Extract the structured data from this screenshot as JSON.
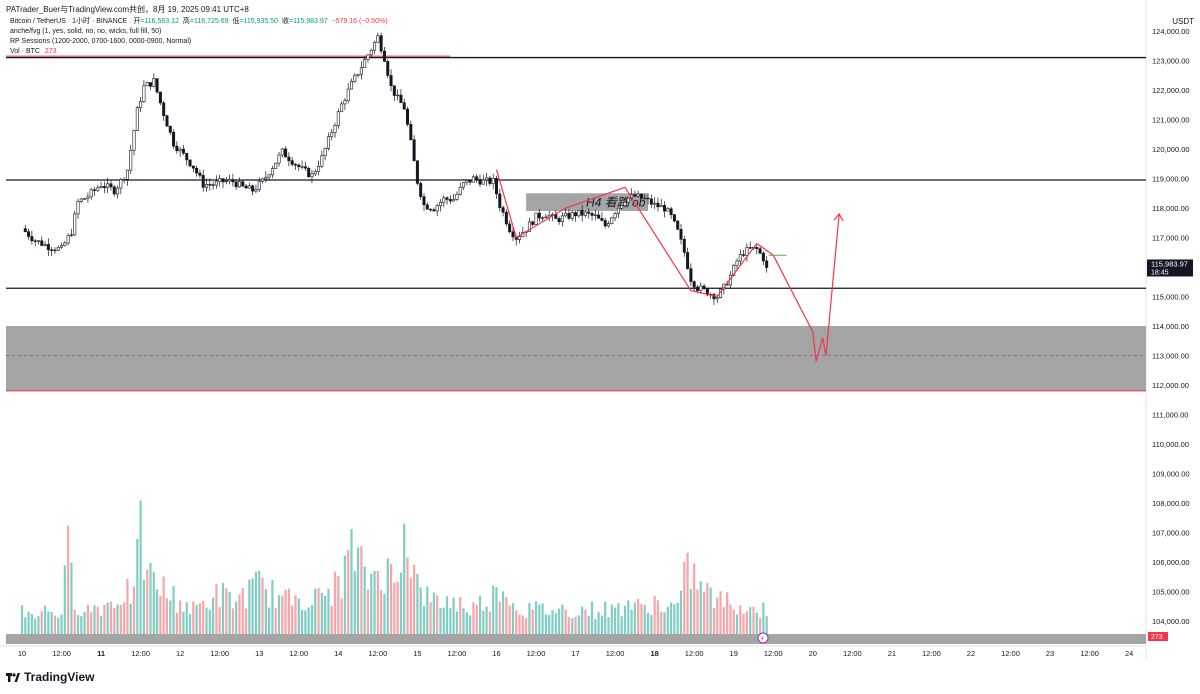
{
  "header": {
    "share_line": "PATrader_Buer与TradingView.com共创，8月 19, 2025 09:41 UTC+8",
    "symbol_line": "Bitcoin / TetherUS · 1小时 · BINANCE",
    "open_label": "开",
    "open_value": "=116,563.12",
    "high_label": "高",
    "high_value": "=116,725.69",
    "low_label": "低",
    "low_value": "=115,935.50",
    "close_label": "收",
    "close_value": "=115,983.97",
    "change_value": "−579.16 (−0.50%)",
    "indicator_1": "anche/fvg (1, yes, solid, no, no, wicks, full fill, 50)",
    "indicator_2": "RP Sessions (1200-2000, 0700-1600, 0000-0900, Normal)",
    "indicator_3_label": "Vol · BTC",
    "indicator_3_value": "273"
  },
  "axis": {
    "currency": "USDT",
    "last_price": "115,983.97",
    "countdown": "18:45",
    "volume_badge": "273"
  },
  "footer": {
    "brand": "TradingView"
  },
  "colors": {
    "up": "#089981",
    "down": "#f23645",
    "up_vol": "#7fcdc3",
    "down_vol": "#f7a5a9",
    "annotation": "#f23645",
    "zone": "#a5a5a5"
  },
  "chart_data": {
    "type": "candlestick",
    "symbol": "BTCUSDT",
    "interval": "1h",
    "ylim": [
      102800,
      124200
    ],
    "y_ticks": [
      "124,000.00",
      "123,000.00",
      "122,000.00",
      "121,000.00",
      "120,000.00",
      "119,000.00",
      "118,000.00",
      "117,000.00",
      "116,000.00",
      "115,000.00",
      "114,000.00",
      "113,000.00",
      "112,000.00",
      "111,000.00",
      "110,000.00",
      "109,000.00",
      "108,000.00",
      "107,000.00",
      "106,000.00",
      "105,000.00",
      "104,000.00"
    ],
    "x_ticks": [
      {
        "label": "10",
        "bar": 0,
        "bold": false
      },
      {
        "label": "12:00",
        "bar": 12,
        "bold": false
      },
      {
        "label": "11",
        "bar": 24,
        "bold": true
      },
      {
        "label": "12:00",
        "bar": 36,
        "bold": false
      },
      {
        "label": "12",
        "bar": 48,
        "bold": false
      },
      {
        "label": "12:00",
        "bar": 60,
        "bold": false
      },
      {
        "label": "13",
        "bar": 72,
        "bold": false
      },
      {
        "label": "12:00",
        "bar": 84,
        "bold": false
      },
      {
        "label": "14",
        "bar": 96,
        "bold": false
      },
      {
        "label": "12:00",
        "bar": 108,
        "bold": false
      },
      {
        "label": "15",
        "bar": 120,
        "bold": false
      },
      {
        "label": "12:00",
        "bar": 132,
        "bold": false
      },
      {
        "label": "16",
        "bar": 144,
        "bold": false
      },
      {
        "label": "12:00",
        "bar": 156,
        "bold": false
      },
      {
        "label": "17",
        "bar": 168,
        "bold": false
      },
      {
        "label": "12:00",
        "bar": 180,
        "bold": false
      },
      {
        "label": "18",
        "bar": 192,
        "bold": true
      },
      {
        "label": "12:00",
        "bar": 204,
        "bold": false
      },
      {
        "label": "19",
        "bar": 216,
        "bold": false
      },
      {
        "label": "12:00",
        "bar": 228,
        "bold": false
      },
      {
        "label": "20",
        "bar": 240,
        "bold": false
      },
      {
        "label": "12:00",
        "bar": 252,
        "bold": false
      },
      {
        "label": "21",
        "bar": 264,
        "bold": false
      },
      {
        "label": "12:00",
        "bar": 276,
        "bold": false
      },
      {
        "label": "22",
        "bar": 288,
        "bold": false
      },
      {
        "label": "12:00",
        "bar": 300,
        "bold": false
      },
      {
        "label": "23",
        "bar": 312,
        "bold": false
      },
      {
        "label": "12:00",
        "bar": 324,
        "bold": false
      },
      {
        "label": "24",
        "bar": 336,
        "bold": false
      }
    ],
    "price_path": [
      [
        0,
        117300
      ],
      [
        4,
        116900
      ],
      [
        8,
        116700
      ],
      [
        12,
        116600
      ],
      [
        15,
        117200
      ],
      [
        17,
        118200
      ],
      [
        20,
        118400
      ],
      [
        24,
        118800
      ],
      [
        28,
        118600
      ],
      [
        30,
        118900
      ],
      [
        32,
        119300
      ],
      [
        35,
        121300
      ],
      [
        37,
        122100
      ],
      [
        40,
        122300
      ],
      [
        43,
        121200
      ],
      [
        46,
        120200
      ],
      [
        49,
        119800
      ],
      [
        52,
        119400
      ],
      [
        55,
        118800
      ],
      [
        58,
        118800
      ],
      [
        61,
        118900
      ],
      [
        64,
        118900
      ],
      [
        67,
        118700
      ],
      [
        70,
        118600
      ],
      [
        73,
        118900
      ],
      [
        76,
        119400
      ],
      [
        79,
        119900
      ],
      [
        82,
        119600
      ],
      [
        85,
        119300
      ],
      [
        88,
        119100
      ],
      [
        91,
        119700
      ],
      [
        94,
        120600
      ],
      [
        97,
        121500
      ],
      [
        100,
        122200
      ],
      [
        103,
        122800
      ],
      [
        106,
        123400
      ],
      [
        108,
        123800
      ],
      [
        110,
        123100
      ],
      [
        112,
        122100
      ],
      [
        114,
        121700
      ],
      [
        116,
        121400
      ],
      [
        118,
        120200
      ],
      [
        120,
        118900
      ],
      [
        122,
        118100
      ],
      [
        125,
        118000
      ],
      [
        128,
        118300
      ],
      [
        131,
        118300
      ],
      [
        134,
        118800
      ],
      [
        137,
        119000
      ],
      [
        140,
        118900
      ],
      [
        143,
        118900
      ],
      [
        145,
        118100
      ],
      [
        148,
        117300
      ],
      [
        150,
        117000
      ],
      [
        153,
        117300
      ],
      [
        156,
        117700
      ],
      [
        159,
        117800
      ],
      [
        162,
        117600
      ],
      [
        165,
        117700
      ],
      [
        168,
        117800
      ],
      [
        171,
        117800
      ],
      [
        174,
        117700
      ],
      [
        177,
        117400
      ],
      [
        180,
        117900
      ],
      [
        183,
        118300
      ],
      [
        186,
        118400
      ],
      [
        189,
        118300
      ],
      [
        192,
        118100
      ],
      [
        195,
        118000
      ],
      [
        197,
        117700
      ],
      [
        199,
        117200
      ],
      [
        201,
        116500
      ],
      [
        203,
        115600
      ],
      [
        205,
        115300
      ],
      [
        207,
        115200
      ],
      [
        209,
        115100
      ],
      [
        211,
        115000
      ],
      [
        213,
        115300
      ],
      [
        215,
        115700
      ],
      [
        217,
        116200
      ],
      [
        219,
        116500
      ],
      [
        221,
        116600
      ],
      [
        223,
        116600
      ],
      [
        225,
        116300
      ],
      [
        226,
        115980
      ]
    ],
    "volume_series_note": "Vol · BTC",
    "volume_path": [
      [
        0,
        3
      ],
      [
        4,
        2.5
      ],
      [
        8,
        3
      ],
      [
        12,
        2.6
      ],
      [
        14,
        10
      ],
      [
        16,
        4
      ],
      [
        20,
        3
      ],
      [
        24,
        3.5
      ],
      [
        28,
        4
      ],
      [
        30,
        5
      ],
      [
        34,
        5
      ],
      [
        36,
        12
      ],
      [
        38,
        7
      ],
      [
        42,
        6
      ],
      [
        44,
        5
      ],
      [
        48,
        4
      ],
      [
        52,
        3
      ],
      [
        56,
        4
      ],
      [
        60,
        5
      ],
      [
        64,
        4
      ],
      [
        68,
        5
      ],
      [
        72,
        6
      ],
      [
        76,
        5
      ],
      [
        80,
        4
      ],
      [
        84,
        5
      ],
      [
        88,
        4
      ],
      [
        92,
        5
      ],
      [
        96,
        6
      ],
      [
        98,
        8
      ],
      [
        100,
        10
      ],
      [
        102,
        9
      ],
      [
        104,
        7
      ],
      [
        106,
        7
      ],
      [
        108,
        8
      ],
      [
        110,
        8
      ],
      [
        112,
        7
      ],
      [
        114,
        6
      ],
      [
        116,
        17
      ],
      [
        118,
        9
      ],
      [
        120,
        6
      ],
      [
        124,
        4
      ],
      [
        128,
        4
      ],
      [
        132,
        4
      ],
      [
        136,
        3
      ],
      [
        140,
        4
      ],
      [
        144,
        5
      ],
      [
        146,
        7
      ],
      [
        148,
        4
      ],
      [
        152,
        3
      ],
      [
        156,
        3
      ],
      [
        160,
        3
      ],
      [
        164,
        3
      ],
      [
        168,
        3
      ],
      [
        172,
        3
      ],
      [
        176,
        3
      ],
      [
        180,
        3
      ],
      [
        184,
        4
      ],
      [
        188,
        3
      ],
      [
        192,
        4
      ],
      [
        196,
        3
      ],
      [
        200,
        4
      ],
      [
        202,
        9
      ],
      [
        204,
        7
      ],
      [
        206,
        6
      ],
      [
        208,
        5
      ],
      [
        212,
        4
      ],
      [
        216,
        4
      ],
      [
        220,
        3
      ],
      [
        226,
        3
      ]
    ],
    "horizontal_levels": [
      {
        "price": 123100,
        "color": "#131722",
        "from_bar": 0
      },
      {
        "price": 123150,
        "color": "#f23645",
        "from_bar": 0,
        "to_bar": 130
      },
      {
        "price": 118950,
        "color": "#131722",
        "from_bar": 0
      },
      {
        "price": 115280,
        "color": "#131722",
        "from_bar": 0
      }
    ],
    "zones": [
      {
        "top": 114000,
        "bottom": 111800,
        "mid": 113000,
        "label": ""
      },
      {
        "top": 118500,
        "bottom": 117900,
        "from_bar": 153,
        "to_bar": 190,
        "label": "H4 看跌 ob"
      }
    ],
    "annotations": [
      {
        "label": "H4 看跌 ob"
      }
    ],
    "red_zigzag": [
      [
        144,
        119300
      ],
      [
        150,
        117000
      ],
      [
        165,
        118000
      ],
      [
        183,
        118700
      ],
      [
        203,
        115200
      ],
      [
        211,
        115000
      ],
      [
        223,
        116800
      ],
      [
        228,
        116400
      ],
      [
        240,
        113800
      ],
      [
        241,
        112800
      ],
      [
        243,
        113600
      ],
      [
        244,
        113000
      ],
      [
        248,
        117800
      ]
    ]
  }
}
